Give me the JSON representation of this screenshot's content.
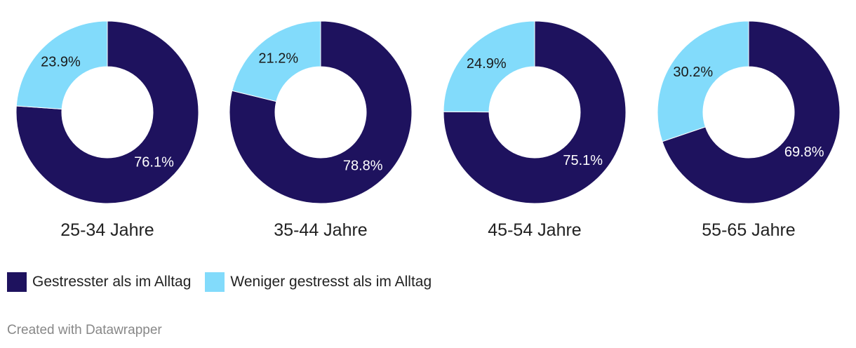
{
  "chart_data": {
    "type": "pie",
    "style": "donut",
    "series_names": [
      "Gestresster als im Alltag",
      "Weniger gestresst als im Alltag"
    ],
    "colors": [
      "#1e125e",
      "#82dbfb"
    ],
    "label_colors": [
      "#ffffff",
      "#1a1a1a"
    ],
    "charts": [
      {
        "title": "25-34 Jahre",
        "values": [
          76.1,
          23.9
        ],
        "labels": [
          "76.1%",
          "23.9%"
        ]
      },
      {
        "title": "35-44 Jahre",
        "values": [
          78.8,
          21.2
        ],
        "labels": [
          "78.8%",
          "21.2%"
        ]
      },
      {
        "title": "45-54 Jahre",
        "values": [
          75.1,
          24.9
        ],
        "labels": [
          "75.1%",
          "24.9%"
        ]
      },
      {
        "title": "55-65 Jahre",
        "values": [
          69.8,
          30.2
        ],
        "labels": [
          "69.8%",
          "30.2%"
        ]
      }
    ]
  },
  "legend": {
    "items": [
      {
        "label": "Gestresster als im Alltag",
        "color": "#1e125e"
      },
      {
        "label": "Weniger gestresst als im Alltag",
        "color": "#82dbfb"
      }
    ]
  },
  "footer": {
    "credit": "Created with Datawrapper"
  }
}
